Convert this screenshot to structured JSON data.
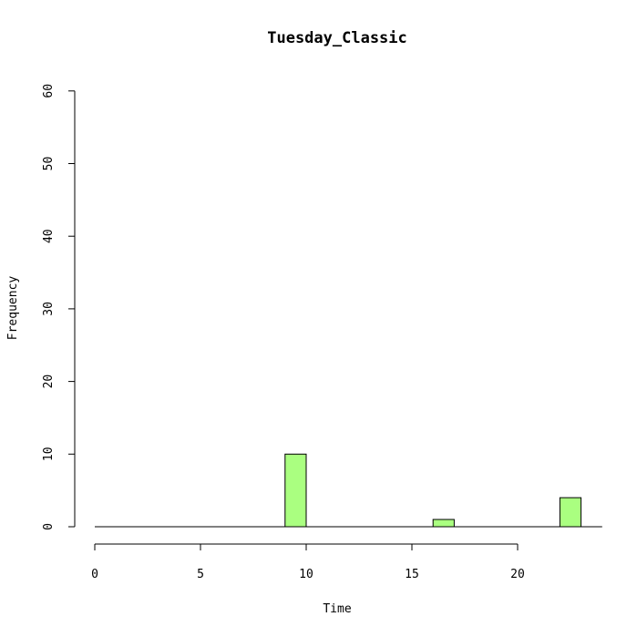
{
  "chart_data": {
    "type": "bar",
    "title": "Tuesday_Classic",
    "xlabel": "Time",
    "ylabel": "Frequency",
    "xlim": [
      0,
      24
    ],
    "ylim": [
      0,
      60
    ],
    "xticks": [
      0,
      5,
      10,
      15,
      20
    ],
    "yticks": [
      0,
      10,
      20,
      30,
      40,
      50,
      60
    ],
    "bin_width": 1,
    "bins": [
      {
        "x0": 0,
        "x1": 1,
        "count": 0
      },
      {
        "x0": 1,
        "x1": 2,
        "count": 0
      },
      {
        "x0": 2,
        "x1": 3,
        "count": 0
      },
      {
        "x0": 3,
        "x1": 4,
        "count": 0
      },
      {
        "x0": 4,
        "x1": 5,
        "count": 0
      },
      {
        "x0": 5,
        "x1": 6,
        "count": 0
      },
      {
        "x0": 6,
        "x1": 7,
        "count": 0
      },
      {
        "x0": 7,
        "x1": 8,
        "count": 0
      },
      {
        "x0": 8,
        "x1": 9,
        "count": 0
      },
      {
        "x0": 9,
        "x1": 10,
        "count": 10
      },
      {
        "x0": 10,
        "x1": 11,
        "count": 0
      },
      {
        "x0": 11,
        "x1": 12,
        "count": 0
      },
      {
        "x0": 12,
        "x1": 13,
        "count": 0
      },
      {
        "x0": 13,
        "x1": 14,
        "count": 0
      },
      {
        "x0": 14,
        "x1": 15,
        "count": 0
      },
      {
        "x0": 15,
        "x1": 16,
        "count": 0
      },
      {
        "x0": 16,
        "x1": 17,
        "count": 1
      },
      {
        "x0": 17,
        "x1": 18,
        "count": 0
      },
      {
        "x0": 18,
        "x1": 19,
        "count": 0
      },
      {
        "x0": 19,
        "x1": 20,
        "count": 0
      },
      {
        "x0": 20,
        "x1": 21,
        "count": 0
      },
      {
        "x0": 21,
        "x1": 22,
        "count": 0
      },
      {
        "x0": 22,
        "x1": 23,
        "count": 4
      },
      {
        "x0": 23,
        "x1": 24,
        "count": 0
      }
    ],
    "bar_color": "#aaff80",
    "grid": false
  }
}
